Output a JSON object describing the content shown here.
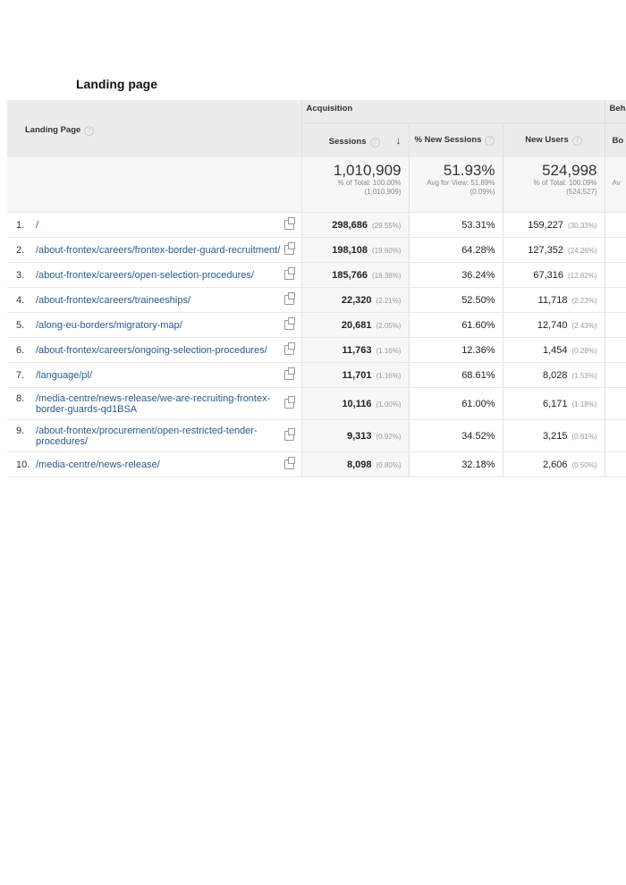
{
  "title": "Landing page",
  "table": {
    "group_headers": {
      "acquisition": "Acquisition",
      "behavior": "Beha"
    },
    "columns": {
      "landing_page": "Landing Page",
      "sessions": "Sessions",
      "new_sessions": "% New Sessions",
      "new_users": "New Users",
      "behavior_first": "Bo"
    },
    "totals": {
      "sessions": "1,010,909",
      "sessions_sub1": "% of Total: 100.00%",
      "sessions_sub2": "(1,010,909)",
      "new_sessions": "51.93%",
      "new_sessions_sub1": "Avg for View: 51.89%",
      "new_sessions_sub2": "(0.09%)",
      "new_users": "524,998",
      "new_users_sub1": "% of Total: 100.09%",
      "new_users_sub2": "(524,527)",
      "behavior_sub1": "Av"
    },
    "rows": [
      {
        "idx": "1.",
        "url": "/",
        "sessions": "298,686",
        "sessions_pct": "(29.55%)",
        "new_sessions": "53.31%",
        "new_users": "159,227",
        "new_users_pct": "(30.33%)"
      },
      {
        "idx": "2.",
        "url": "/about-frontex/careers/frontex-border-guard-recruitment/",
        "sessions": "198,108",
        "sessions_pct": "(19.60%)",
        "new_sessions": "64.28%",
        "new_users": "127,352",
        "new_users_pct": "(24.26%)"
      },
      {
        "idx": "3.",
        "url": "/about-frontex/careers/open-selection-procedures/",
        "sessions": "185,766",
        "sessions_pct": "(18.38%)",
        "new_sessions": "36.24%",
        "new_users": "67,316",
        "new_users_pct": "(12.82%)"
      },
      {
        "idx": "4.",
        "url": "/about-frontex/careers/traineeships/",
        "sessions": "22,320",
        "sessions_pct": "(2.21%)",
        "new_sessions": "52.50%",
        "new_users": "11,718",
        "new_users_pct": "(2.23%)"
      },
      {
        "idx": "5.",
        "url": "/along-eu-borders/migratory-map/",
        "sessions": "20,681",
        "sessions_pct": "(2.05%)",
        "new_sessions": "61.60%",
        "new_users": "12,740",
        "new_users_pct": "(2.43%)"
      },
      {
        "idx": "6.",
        "url": "/about-frontex/careers/ongoing-selection-procedures/",
        "sessions": "11,763",
        "sessions_pct": "(1.16%)",
        "new_sessions": "12.36%",
        "new_users": "1,454",
        "new_users_pct": "(0.28%)"
      },
      {
        "idx": "7.",
        "url": "/language/pl/",
        "sessions": "11,701",
        "sessions_pct": "(1.16%)",
        "new_sessions": "68.61%",
        "new_users": "8,028",
        "new_users_pct": "(1.53%)"
      },
      {
        "idx": "8.",
        "url": "/media-centre/news-release/we-are-recruiting-frontex-border-guards-qd1BSA",
        "sessions": "10,116",
        "sessions_pct": "(1.00%)",
        "new_sessions": "61.00%",
        "new_users": "6,171",
        "new_users_pct": "(1.18%)"
      },
      {
        "idx": "9.",
        "url": "/about-frontex/procurement/open-restricted-tender-procedures/",
        "sessions": "9,313",
        "sessions_pct": "(0.92%)",
        "new_sessions": "34.52%",
        "new_users": "3,215",
        "new_users_pct": "(0.61%)"
      },
      {
        "idx": "10.",
        "url": "/media-centre/news-release/",
        "sessions": "8,098",
        "sessions_pct": "(0.80%)",
        "new_sessions": "32.18%",
        "new_users": "2,606",
        "new_users_pct": "(0.50%)"
      }
    ]
  }
}
